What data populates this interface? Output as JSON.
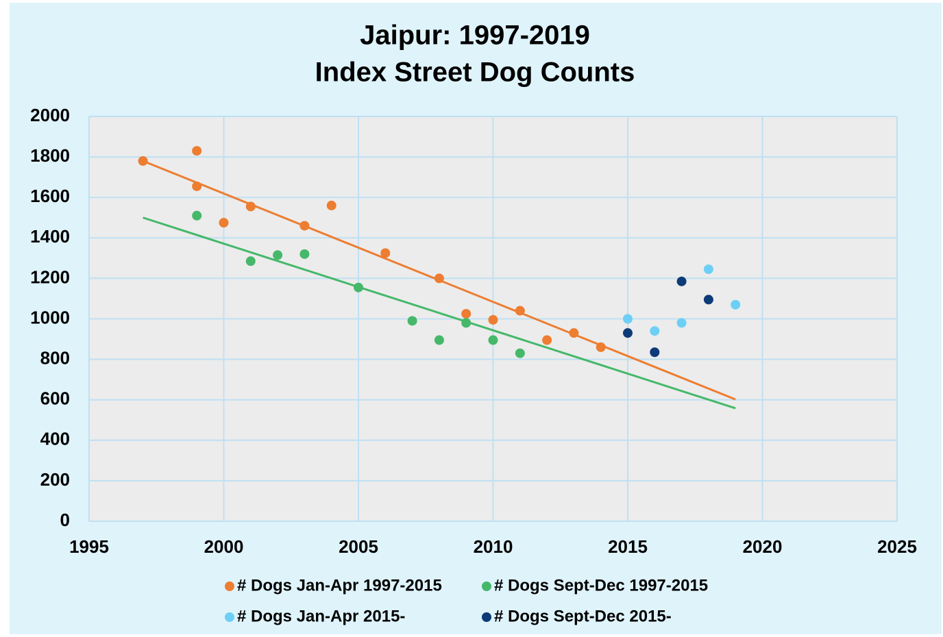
{
  "chart_data": {
    "type": "scatter",
    "title": [
      "Jaipur: 1997-2019",
      "Index Street Dog Counts"
    ],
    "xlim": [
      1995,
      2025
    ],
    "xticks": [
      1995,
      2000,
      2005,
      2010,
      2015,
      2020,
      2025
    ],
    "ylim": [
      0,
      2000
    ],
    "yticks": [
      0,
      200,
      400,
      600,
      800,
      1000,
      1200,
      1400,
      1600,
      1800,
      2000
    ],
    "grid": true,
    "series": [
      {
        "name": "# Dogs Jan-Apr 1997-2015",
        "color": "#ed7d31",
        "x": [
          1997,
          1999,
          1999,
          2000,
          2001,
          2003,
          2004,
          2006,
          2008,
          2009,
          2010,
          2011,
          2012,
          2013,
          2014
        ],
        "values": [
          1780,
          1830,
          1655,
          1475,
          1555,
          1460,
          1560,
          1325,
          1200,
          1025,
          995,
          1040,
          895,
          930,
          860
        ],
        "trendline": {
          "x": [
            1997,
            2019
          ],
          "values": [
            1780,
            602
          ]
        }
      },
      {
        "name": "# Dogs Sept-Dec 1997-2015",
        "color": "#45b86a",
        "x": [
          1999,
          2001,
          2002,
          2003,
          2005,
          2007,
          2008,
          2009,
          2010,
          2011
        ],
        "values": [
          1510,
          1285,
          1315,
          1320,
          1155,
          990,
          895,
          980,
          895,
          830
        ],
        "trendline": {
          "x": [
            1997,
            2019
          ],
          "values": [
            1500,
            558
          ]
        }
      },
      {
        "name": "# Dogs Jan-Apr 2015-",
        "color": "#6dcff6",
        "x": [
          2015,
          2016,
          2017,
          2018,
          2019
        ],
        "values": [
          1000,
          940,
          980,
          1245,
          1070
        ]
      },
      {
        "name": "# Dogs Sept-Dec 2015-",
        "color": "#0d3b78",
        "x": [
          2015,
          2016,
          2017,
          2018
        ],
        "values": [
          930,
          835,
          1185,
          1095
        ]
      }
    ]
  }
}
